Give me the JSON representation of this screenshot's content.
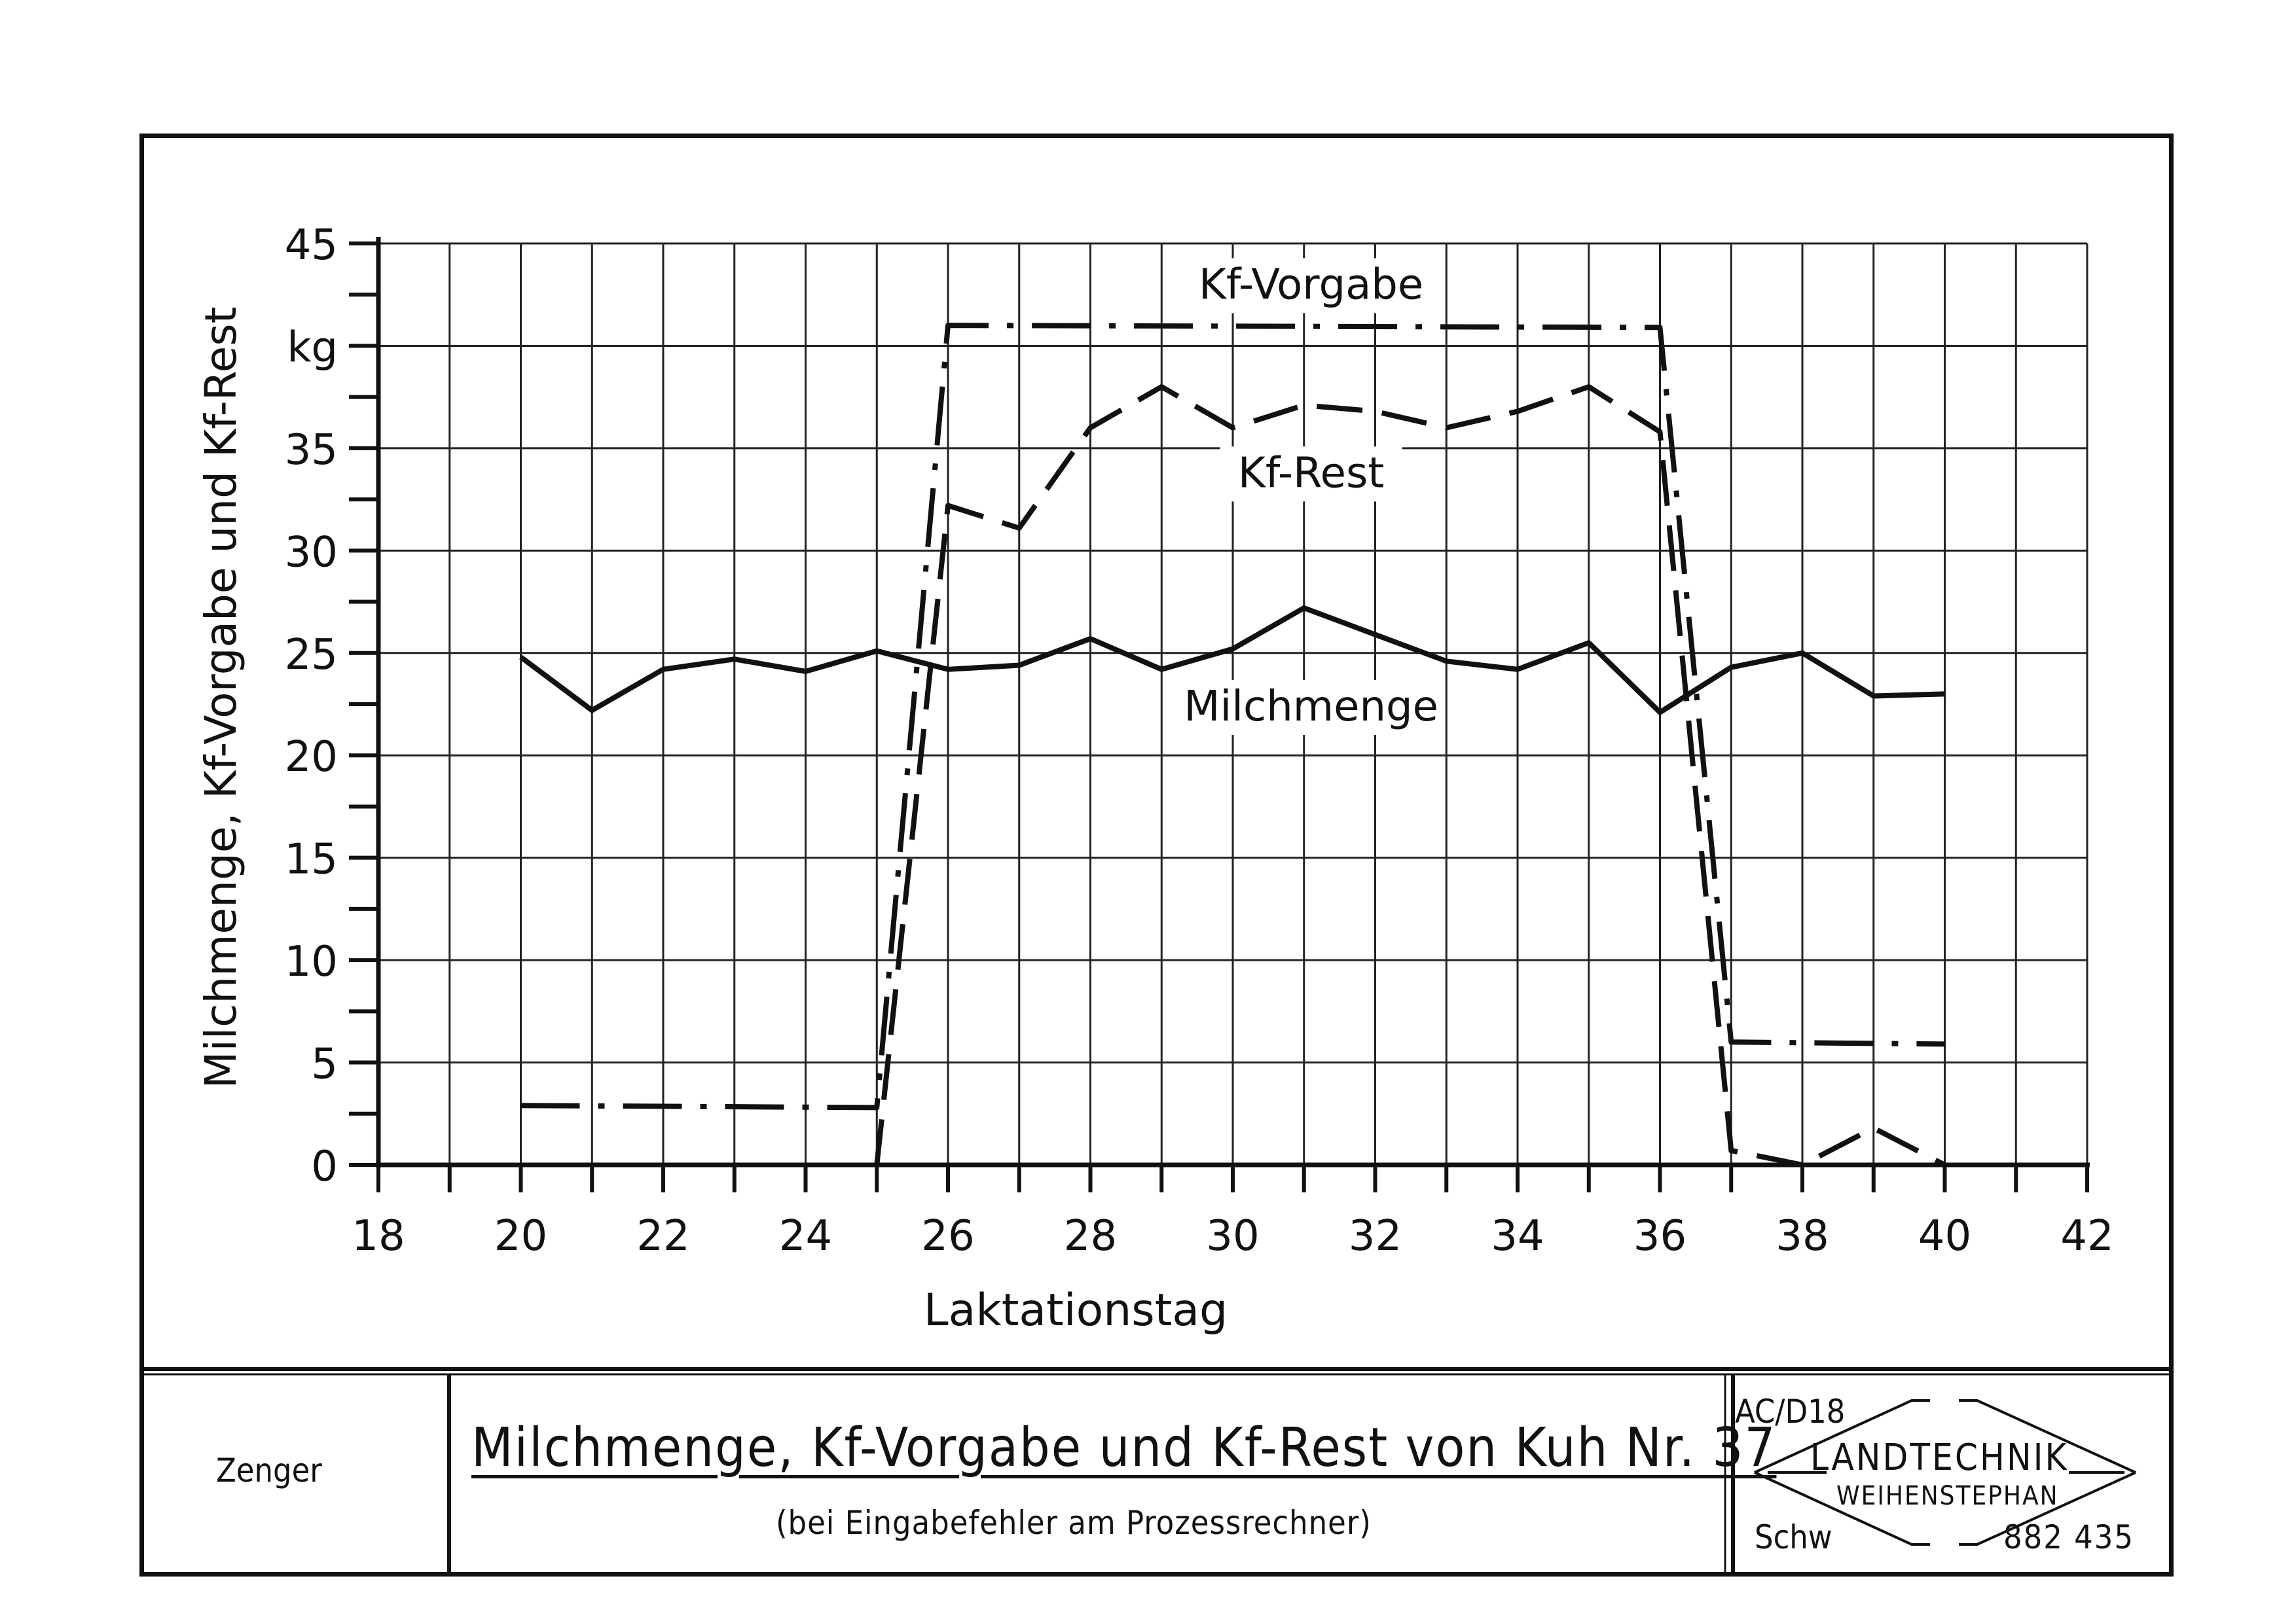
{
  "chart_data": {
    "type": "line",
    "xlabel": "Laktationstag",
    "ylabel": "Milchmenge, Kf-Vorgabe und Kf-Rest",
    "yunit": "kg",
    "xlim": [
      18,
      42
    ],
    "ylim": [
      0,
      45
    ],
    "xticks": [
      18,
      20,
      22,
      24,
      26,
      28,
      30,
      32,
      34,
      36,
      38,
      40,
      42
    ],
    "yticks": [
      0,
      5,
      10,
      15,
      20,
      25,
      30,
      35,
      45
    ],
    "grid": true,
    "series": [
      {
        "name": "Milchmenge",
        "style": "solid",
        "x": [
          20,
          21,
          22,
          23,
          24,
          25,
          26,
          27,
          28,
          29,
          30,
          31,
          32,
          33,
          34,
          35,
          36,
          37,
          38,
          39,
          40
        ],
        "y": [
          24.8,
          22.2,
          24.2,
          24.7,
          24.1,
          25.1,
          24.2,
          24.4,
          25.7,
          24.2,
          25.2,
          27.2,
          25.9,
          24.6,
          24.2,
          25.5,
          22.1,
          24.3,
          25,
          22.9,
          23
        ]
      },
      {
        "name": "Kf-Vorgabe",
        "style": "dash-dot",
        "x": [
          20,
          25,
          26,
          36,
          37,
          40
        ],
        "y": [
          2.9,
          2.8,
          41,
          40.9,
          6,
          5.9
        ]
      },
      {
        "name": "Kf-Rest",
        "style": "dashed",
        "x": [
          25,
          26,
          27,
          28,
          29,
          30,
          31,
          32,
          33,
          34,
          35,
          36,
          37,
          38,
          39,
          40
        ],
        "y": [
          0,
          32.2,
          31.1,
          36,
          38,
          36,
          37.1,
          36.8,
          36,
          36.8,
          38,
          35.8,
          0.7,
          0,
          1.8,
          0
        ]
      }
    ]
  },
  "titleblock": {
    "author": "Zenger",
    "title": "Milchmenge, Kf-Vorgabe und Kf-Rest von Kuh Nr. 37",
    "subtitle": "(bei Eingabefehler am Prozessrechner)",
    "code": "AC/D18",
    "logo_main": "LANDTECHNIK",
    "logo_sub": "WEIHENSTEPHAN",
    "drawer": "Schw",
    "number": "882 435"
  }
}
